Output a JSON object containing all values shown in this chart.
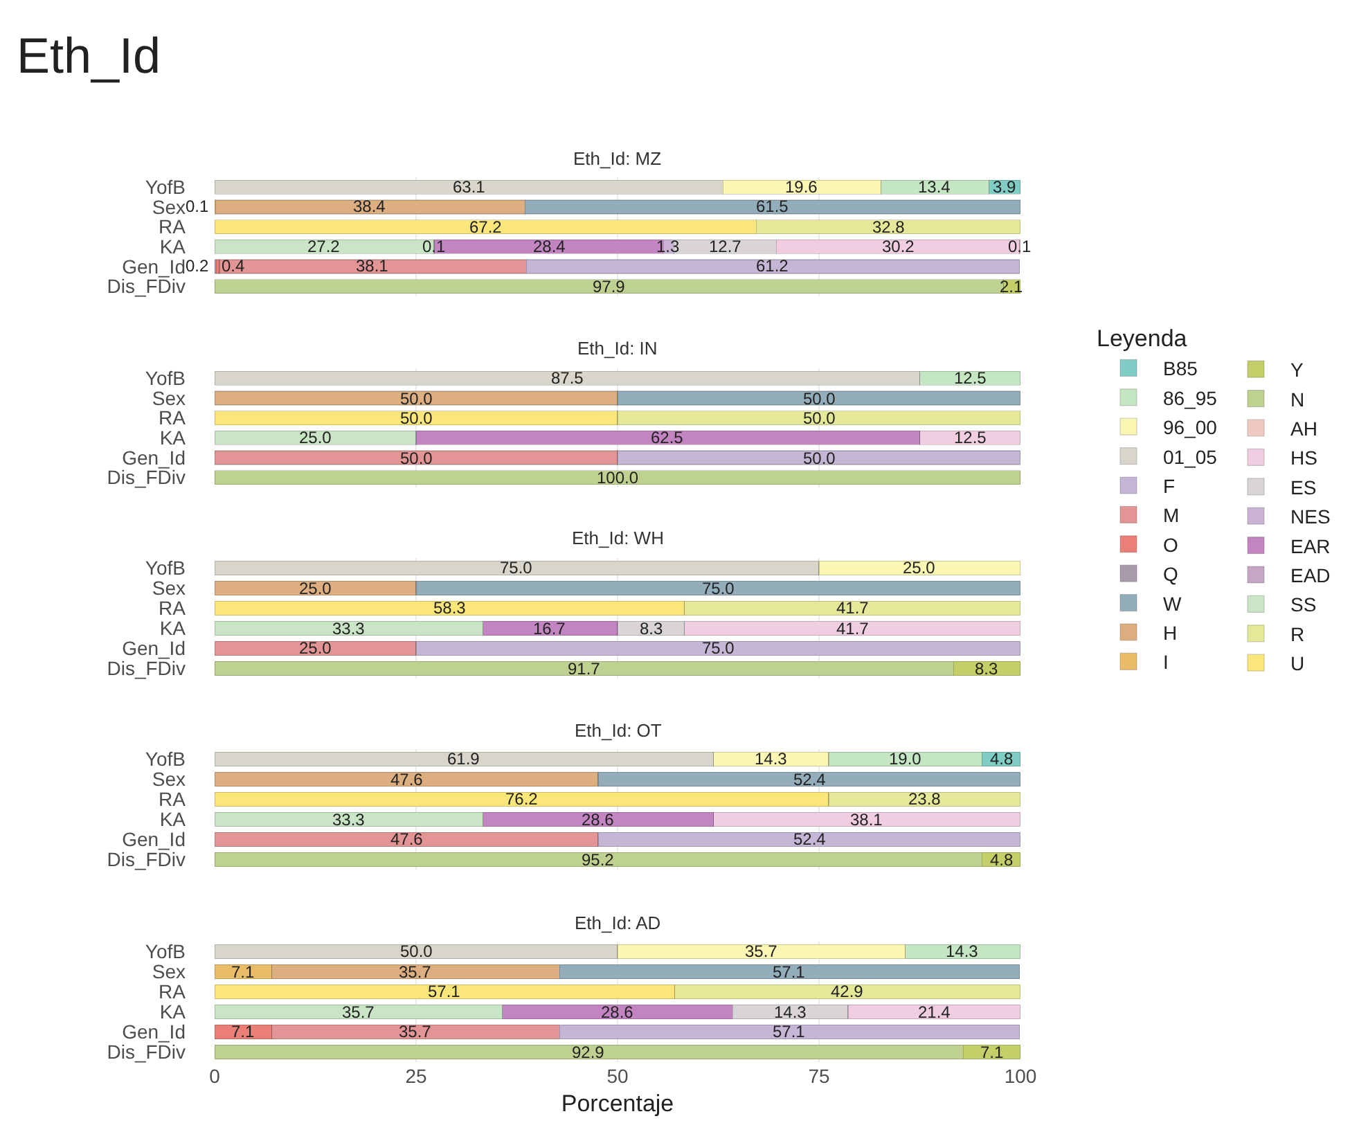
{
  "chart_data": [
    {
      "type": "bar",
      "orientation": "horizontal",
      "stacked": true,
      "title": "Eth_Id",
      "subtitle": "Eth_Id: MZ",
      "legend_title": "Leyenda",
      "legend": "right",
      "categories": [
        "YofB",
        "Sex",
        "RA",
        "KA",
        "Gen_Id",
        "Dis_FDiv"
      ],
      "xlim": [
        0,
        100
      ],
      "xticks": [
        0,
        25,
        50,
        75,
        100
      ],
      "grid": true,
      "tick_labels": "y",
      "series": [
        {
          "name": "U",
          "color": "#fbe67a",
          "values": [
            null,
            null,
            67.2,
            null,
            null,
            null
          ],
          "value_labels": [
            null,
            null,
            "67.2",
            null,
            null,
            null
          ]
        },
        {
          "name": "R",
          "color": "#e5e898",
          "values": [
            null,
            null,
            32.8,
            null,
            null,
            null
          ],
          "value_labels": [
            null,
            null,
            "32.8",
            null,
            null,
            null
          ]
        },
        {
          "name": "SS",
          "color": "#c9e5c6",
          "values": [
            null,
            null,
            null,
            27.2,
            null,
            null
          ],
          "value_labels": [
            null,
            null,
            null,
            "27.2",
            null,
            null
          ]
        },
        {
          "name": "EAD",
          "color": "#c3a7c4",
          "values": [
            null,
            null,
            null,
            0.1,
            null,
            null
          ],
          "value_labels": [
            null,
            null,
            null,
            "0.1",
            null,
            null
          ]
        },
        {
          "name": "EAR",
          "color": "#c385c2",
          "values": [
            null,
            null,
            null,
            28.4,
            null,
            null
          ],
          "value_labels": [
            null,
            null,
            null,
            "28.4",
            null,
            null
          ]
        },
        {
          "name": "NES",
          "color": "#cbb3d3",
          "values": [
            null,
            null,
            null,
            1.3,
            null,
            null
          ],
          "value_labels": [
            null,
            null,
            null,
            "1.3",
            null,
            null
          ]
        },
        {
          "name": "ES",
          "color": "#d9d5d6",
          "values": [
            null,
            null,
            null,
            12.7,
            null,
            null
          ],
          "value_labels": [
            null,
            null,
            null,
            "12.7",
            null,
            null
          ]
        },
        {
          "name": "HS",
          "color": "#f0cde0",
          "values": [
            null,
            null,
            null,
            30.2,
            null,
            null
          ],
          "value_labels": [
            null,
            null,
            null,
            "30.2",
            null,
            null
          ]
        },
        {
          "name": "AH",
          "color": "#efcac4",
          "values": [
            null,
            null,
            null,
            0.1,
            null,
            null
          ],
          "value_labels": [
            null,
            null,
            null,
            "0.1",
            null,
            null
          ]
        },
        {
          "name": "N",
          "color": "#bfd190",
          "values": [
            null,
            null,
            null,
            null,
            null,
            97.9
          ],
          "value_labels": [
            null,
            null,
            null,
            null,
            null,
            "97.9"
          ]
        },
        {
          "name": "Y",
          "color": "#c4cf6a",
          "values": [
            null,
            null,
            null,
            null,
            null,
            2.1
          ],
          "value_labels": [
            null,
            null,
            null,
            null,
            null,
            "2.1"
          ]
        },
        {
          "name": "I",
          "color": "#e9bd67",
          "values": [
            null,
            0.1,
            null,
            null,
            null,
            null
          ],
          "value_labels": [
            null,
            "0.1",
            null,
            null,
            null,
            null
          ]
        },
        {
          "name": "H",
          "color": "#dcae80",
          "values": [
            null,
            38.4,
            null,
            null,
            null,
            null
          ],
          "value_labels": [
            null,
            "38.4",
            null,
            null,
            null,
            null
          ]
        },
        {
          "name": "W",
          "color": "#93adbb",
          "values": [
            null,
            61.5,
            null,
            null,
            null,
            null
          ],
          "value_labels": [
            null,
            "61.5",
            null,
            null,
            null,
            null
          ]
        },
        {
          "name": "Q",
          "color": "#a99aab",
          "values": [
            null,
            null,
            null,
            null,
            0.2,
            null
          ],
          "value_labels": [
            null,
            null,
            null,
            null,
            "0.2",
            null
          ]
        },
        {
          "name": "O",
          "color": "#ea7f78",
          "values": [
            null,
            null,
            null,
            null,
            0.4,
            null
          ],
          "value_labels": [
            null,
            null,
            null,
            null,
            "0.4",
            null
          ]
        },
        {
          "name": "M",
          "color": "#e39494",
          "values": [
            null,
            null,
            null,
            null,
            38.1,
            null
          ],
          "value_labels": [
            null,
            null,
            null,
            null,
            "38.1",
            null
          ]
        },
        {
          "name": "F",
          "color": "#c5b6d6",
          "values": [
            null,
            null,
            null,
            null,
            61.2,
            null
          ],
          "value_labels": [
            null,
            null,
            null,
            null,
            "61.2",
            null
          ]
        },
        {
          "name": "01_05",
          "color": "#d8d6cb",
          "values": [
            63.1,
            null,
            null,
            null,
            null,
            null
          ],
          "value_labels": [
            "63.1",
            null,
            null,
            null,
            null,
            null
          ]
        },
        {
          "name": "96_00",
          "color": "#fbf6b4",
          "values": [
            19.6,
            null,
            null,
            null,
            null,
            null
          ],
          "value_labels": [
            "19.6",
            null,
            null,
            null,
            null,
            null
          ]
        },
        {
          "name": "86_95",
          "color": "#c4e6c3",
          "values": [
            13.4,
            null,
            null,
            null,
            null,
            null
          ],
          "value_labels": [
            "13.4",
            null,
            null,
            null,
            null,
            null
          ]
        },
        {
          "name": "B85",
          "color": "#7fcdc4",
          "values": [
            3.9,
            null,
            null,
            null,
            null,
            null
          ],
          "value_labels": [
            "3.9",
            null,
            null,
            null,
            null,
            null
          ]
        }
      ]
    },
    {
      "type": "bar",
      "orientation": "horizontal",
      "stacked": true,
      "title": "Eth_Id: IN",
      "categories": [
        "YofB",
        "Sex",
        "RA",
        "KA",
        "Gen_Id",
        "Dis_FDiv"
      ],
      "xlim": [
        0,
        100
      ],
      "xticks": [
        0,
        25,
        50,
        75,
        100
      ],
      "grid": true,
      "tick_labels": "y",
      "series": [
        {
          "color": "#fbe67a",
          "values": [
            null,
            null,
            50.0,
            null,
            null,
            null
          ],
          "value_labels": [
            null,
            null,
            "50.0",
            null,
            null,
            null
          ]
        },
        {
          "color": "#e5e898",
          "values": [
            null,
            null,
            50.0,
            null,
            null,
            null
          ],
          "value_labels": [
            null,
            null,
            "50.0",
            null,
            null,
            null
          ]
        },
        {
          "color": "#c9e5c6",
          "values": [
            null,
            null,
            null,
            25.0,
            null,
            null
          ],
          "value_labels": [
            null,
            null,
            null,
            "25.0",
            null,
            null
          ]
        },
        {
          "color": "#c385c2",
          "values": [
            null,
            null,
            null,
            62.5,
            null,
            null
          ],
          "value_labels": [
            null,
            null,
            null,
            "62.5",
            null,
            null
          ]
        },
        {
          "color": "#f0cde0",
          "values": [
            null,
            null,
            null,
            12.5,
            null,
            null
          ],
          "value_labels": [
            null,
            null,
            null,
            "12.5",
            null,
            null
          ]
        },
        {
          "color": "#bfd190",
          "values": [
            null,
            null,
            null,
            null,
            null,
            100.0
          ],
          "value_labels": [
            null,
            null,
            null,
            null,
            null,
            "100.0"
          ]
        },
        {
          "color": "#dcae80",
          "values": [
            null,
            50.0,
            null,
            null,
            null,
            null
          ],
          "value_labels": [
            null,
            "50.0",
            null,
            null,
            null,
            null
          ]
        },
        {
          "color": "#93adbb",
          "values": [
            null,
            50.0,
            null,
            null,
            null,
            null
          ],
          "value_labels": [
            null,
            "50.0",
            null,
            null,
            null,
            null
          ]
        },
        {
          "color": "#e39494",
          "values": [
            null,
            null,
            null,
            null,
            50.0,
            null
          ],
          "value_labels": [
            null,
            null,
            null,
            null,
            "50.0",
            null
          ]
        },
        {
          "color": "#c5b6d6",
          "values": [
            null,
            null,
            null,
            null,
            50.0,
            null
          ],
          "value_labels": [
            null,
            null,
            null,
            null,
            "50.0",
            null
          ]
        },
        {
          "color": "#d8d6cb",
          "values": [
            87.5,
            null,
            null,
            null,
            null,
            null
          ],
          "value_labels": [
            "87.5",
            null,
            null,
            null,
            null,
            null
          ]
        },
        {
          "color": "#c4e6c3",
          "values": [
            12.5,
            null,
            null,
            null,
            null,
            null
          ],
          "value_labels": [
            "12.5",
            null,
            null,
            null,
            null,
            null
          ]
        }
      ]
    },
    {
      "type": "bar",
      "orientation": "horizontal",
      "stacked": true,
      "title": "Eth_Id: WH",
      "categories": [
        "YofB",
        "Sex",
        "RA",
        "KA",
        "Gen_Id",
        "Dis_FDiv"
      ],
      "xlim": [
        0,
        100
      ],
      "xticks": [
        0,
        25,
        50,
        75,
        100
      ],
      "grid": true,
      "tick_labels": "y",
      "series": [
        {
          "color": "#fbe67a",
          "values": [
            null,
            null,
            58.3,
            null,
            null,
            null
          ],
          "value_labels": [
            null,
            null,
            "58.3",
            null,
            null,
            null
          ]
        },
        {
          "color": "#e5e898",
          "values": [
            null,
            null,
            41.7,
            null,
            null,
            null
          ],
          "value_labels": [
            null,
            null,
            "41.7",
            null,
            null,
            null
          ]
        },
        {
          "color": "#c9e5c6",
          "values": [
            null,
            null,
            null,
            33.3,
            null,
            null
          ],
          "value_labels": [
            null,
            null,
            null,
            "33.3",
            null,
            null
          ]
        },
        {
          "color": "#c385c2",
          "values": [
            null,
            null,
            null,
            16.7,
            null,
            null
          ],
          "value_labels": [
            null,
            null,
            null,
            "16.7",
            null,
            null
          ]
        },
        {
          "color": "#d9d5d6",
          "values": [
            null,
            null,
            null,
            8.3,
            null,
            null
          ],
          "value_labels": [
            null,
            null,
            null,
            "8.3",
            null,
            null
          ]
        },
        {
          "color": "#f0cde0",
          "values": [
            null,
            null,
            null,
            41.7,
            null,
            null
          ],
          "value_labels": [
            null,
            null,
            null,
            "41.7",
            null,
            null
          ]
        },
        {
          "color": "#bfd190",
          "values": [
            null,
            null,
            null,
            null,
            null,
            91.7
          ],
          "value_labels": [
            null,
            null,
            null,
            null,
            null,
            "91.7"
          ]
        },
        {
          "color": "#c4cf6a",
          "values": [
            null,
            null,
            null,
            null,
            null,
            8.3
          ],
          "value_labels": [
            null,
            null,
            null,
            null,
            null,
            "8.3"
          ]
        },
        {
          "color": "#dcae80",
          "values": [
            null,
            25.0,
            null,
            null,
            null,
            null
          ],
          "value_labels": [
            null,
            "25.0",
            null,
            null,
            null,
            null
          ]
        },
        {
          "color": "#93adbb",
          "values": [
            null,
            75.0,
            null,
            null,
            null,
            null
          ],
          "value_labels": [
            null,
            "75.0",
            null,
            null,
            null,
            null
          ]
        },
        {
          "color": "#e39494",
          "values": [
            null,
            null,
            null,
            null,
            25.0,
            null
          ],
          "value_labels": [
            null,
            null,
            null,
            null,
            "25.0",
            null
          ]
        },
        {
          "color": "#c5b6d6",
          "values": [
            null,
            null,
            null,
            null,
            75.0,
            null
          ],
          "value_labels": [
            null,
            null,
            null,
            null,
            "75.0",
            null
          ]
        },
        {
          "color": "#d8d6cb",
          "values": [
            75.0,
            null,
            null,
            null,
            null,
            null
          ],
          "value_labels": [
            "75.0",
            null,
            null,
            null,
            null,
            null
          ]
        },
        {
          "color": "#fbf6b4",
          "values": [
            25.0,
            null,
            null,
            null,
            null,
            null
          ],
          "value_labels": [
            "25.0",
            null,
            null,
            null,
            null,
            null
          ]
        }
      ]
    },
    {
      "type": "bar",
      "orientation": "horizontal",
      "stacked": true,
      "title": "Eth_Id: OT",
      "categories": [
        "YofB",
        "Sex",
        "RA",
        "KA",
        "Gen_Id",
        "Dis_FDiv"
      ],
      "xlim": [
        0,
        100
      ],
      "xticks": [
        0,
        25,
        50,
        75,
        100
      ],
      "grid": true,
      "tick_labels": "y",
      "series": [
        {
          "color": "#fbe67a",
          "values": [
            null,
            null,
            76.2,
            null,
            null,
            null
          ],
          "value_labels": [
            null,
            null,
            "76.2",
            null,
            null,
            null
          ]
        },
        {
          "color": "#e5e898",
          "values": [
            null,
            null,
            23.8,
            null,
            null,
            null
          ],
          "value_labels": [
            null,
            null,
            "23.8",
            null,
            null,
            null
          ]
        },
        {
          "color": "#c9e5c6",
          "values": [
            null,
            null,
            null,
            33.3,
            null,
            null
          ],
          "value_labels": [
            null,
            null,
            null,
            "33.3",
            null,
            null
          ]
        },
        {
          "color": "#c385c2",
          "values": [
            null,
            null,
            null,
            28.6,
            null,
            null
          ],
          "value_labels": [
            null,
            null,
            null,
            "28.6",
            null,
            null
          ]
        },
        {
          "color": "#f0cde0",
          "values": [
            null,
            null,
            null,
            38.1,
            null,
            null
          ],
          "value_labels": [
            null,
            null,
            null,
            "38.1",
            null,
            null
          ]
        },
        {
          "color": "#bfd190",
          "values": [
            null,
            null,
            null,
            null,
            null,
            95.2
          ],
          "value_labels": [
            null,
            null,
            null,
            null,
            null,
            "95.2"
          ]
        },
        {
          "color": "#c4cf6a",
          "values": [
            null,
            null,
            null,
            null,
            null,
            4.8
          ],
          "value_labels": [
            null,
            null,
            null,
            null,
            null,
            "4.8"
          ]
        },
        {
          "color": "#dcae80",
          "values": [
            null,
            47.6,
            null,
            null,
            null,
            null
          ],
          "value_labels": [
            null,
            "47.6",
            null,
            null,
            null,
            null
          ]
        },
        {
          "color": "#93adbb",
          "values": [
            null,
            52.4,
            null,
            null,
            null,
            null
          ],
          "value_labels": [
            null,
            "52.4",
            null,
            null,
            null,
            null
          ]
        },
        {
          "color": "#e39494",
          "values": [
            null,
            null,
            null,
            null,
            47.6,
            null
          ],
          "value_labels": [
            null,
            null,
            null,
            null,
            "47.6",
            null
          ]
        },
        {
          "color": "#c5b6d6",
          "values": [
            null,
            null,
            null,
            null,
            52.4,
            null
          ],
          "value_labels": [
            null,
            null,
            null,
            null,
            "52.4",
            null
          ]
        },
        {
          "color": "#d8d6cb",
          "values": [
            61.9,
            null,
            null,
            null,
            null,
            null
          ],
          "value_labels": [
            "61.9",
            null,
            null,
            null,
            null,
            null
          ]
        },
        {
          "color": "#fbf6b4",
          "values": [
            14.3,
            null,
            null,
            null,
            null,
            null
          ],
          "value_labels": [
            "14.3",
            null,
            null,
            null,
            null,
            null
          ]
        },
        {
          "color": "#c4e6c3",
          "values": [
            19.0,
            null,
            null,
            null,
            null,
            null
          ],
          "value_labels": [
            "19.0",
            null,
            null,
            null,
            null,
            null
          ]
        },
        {
          "color": "#7fcdc4",
          "values": [
            4.8,
            null,
            null,
            null,
            null,
            null
          ],
          "value_labels": [
            "4.8",
            null,
            null,
            null,
            null,
            null
          ]
        }
      ]
    },
    {
      "type": "bar",
      "orientation": "horizontal",
      "stacked": true,
      "title": "Eth_Id: AD",
      "xlabel": "Porcentaje",
      "categories": [
        "YofB",
        "Sex",
        "RA",
        "KA",
        "Gen_Id",
        "Dis_FDiv"
      ],
      "xlim": [
        0,
        100
      ],
      "xticks": [
        0,
        25,
        50,
        75,
        100
      ],
      "grid": true,
      "series": [
        {
          "color": "#fbe67a",
          "values": [
            null,
            null,
            57.1,
            null,
            null,
            null
          ],
          "value_labels": [
            null,
            null,
            "57.1",
            null,
            null,
            null
          ]
        },
        {
          "color": "#e5e898",
          "values": [
            null,
            null,
            42.9,
            null,
            null,
            null
          ],
          "value_labels": [
            null,
            null,
            "42.9",
            null,
            null,
            null
          ]
        },
        {
          "color": "#c9e5c6",
          "values": [
            null,
            null,
            null,
            35.7,
            null,
            null
          ],
          "value_labels": [
            null,
            null,
            null,
            "35.7",
            null,
            null
          ]
        },
        {
          "color": "#c385c2",
          "values": [
            null,
            null,
            null,
            28.6,
            null,
            null
          ],
          "value_labels": [
            null,
            null,
            null,
            "28.6",
            null,
            null
          ]
        },
        {
          "color": "#d9d5d6",
          "values": [
            null,
            null,
            null,
            14.3,
            null,
            null
          ],
          "value_labels": [
            null,
            null,
            null,
            "14.3",
            null,
            null
          ]
        },
        {
          "color": "#f0cde0",
          "values": [
            null,
            null,
            null,
            21.4,
            null,
            null
          ],
          "value_labels": [
            null,
            null,
            null,
            "21.4",
            null,
            null
          ]
        },
        {
          "color": "#bfd190",
          "values": [
            null,
            null,
            null,
            null,
            null,
            92.9
          ],
          "value_labels": [
            null,
            null,
            null,
            null,
            null,
            "92.9"
          ]
        },
        {
          "color": "#c4cf6a",
          "values": [
            null,
            null,
            null,
            null,
            null,
            7.1
          ],
          "value_labels": [
            null,
            null,
            null,
            null,
            null,
            "7.1"
          ]
        },
        {
          "color": "#e9bd67",
          "values": [
            null,
            7.1,
            null,
            null,
            null,
            null
          ],
          "value_labels": [
            null,
            "7.1",
            null,
            null,
            null,
            null
          ]
        },
        {
          "color": "#dcae80",
          "values": [
            null,
            35.7,
            null,
            null,
            null,
            null
          ],
          "value_labels": [
            null,
            "35.7",
            null,
            null,
            null,
            null
          ]
        },
        {
          "color": "#93adbb",
          "values": [
            null,
            57.1,
            null,
            null,
            null,
            null
          ],
          "value_labels": [
            null,
            "57.1",
            null,
            null,
            null,
            null
          ]
        },
        {
          "color": "#ea7f78",
          "values": [
            null,
            null,
            null,
            null,
            7.1,
            null
          ],
          "value_labels": [
            null,
            null,
            null,
            null,
            "7.1",
            null
          ]
        },
        {
          "color": "#e39494",
          "values": [
            null,
            null,
            null,
            null,
            35.7,
            null
          ],
          "value_labels": [
            null,
            null,
            null,
            null,
            "35.7",
            null
          ]
        },
        {
          "color": "#c5b6d6",
          "values": [
            null,
            null,
            null,
            null,
            57.1,
            null
          ],
          "value_labels": [
            null,
            null,
            null,
            null,
            "57.1",
            null
          ]
        },
        {
          "color": "#d8d6cb",
          "values": [
            50.0,
            null,
            null,
            null,
            null,
            null
          ],
          "value_labels": [
            "50.0",
            null,
            null,
            null,
            null,
            null
          ]
        },
        {
          "color": "#fbf6b4",
          "values": [
            35.7,
            null,
            null,
            null,
            null,
            null
          ],
          "value_labels": [
            "35.7",
            null,
            null,
            null,
            null,
            null
          ]
        },
        {
          "color": "#c4e6c3",
          "values": [
            14.3,
            null,
            null,
            null,
            null,
            null
          ],
          "value_labels": [
            "14.3",
            null,
            null,
            null,
            null,
            null
          ]
        }
      ]
    }
  ]
}
